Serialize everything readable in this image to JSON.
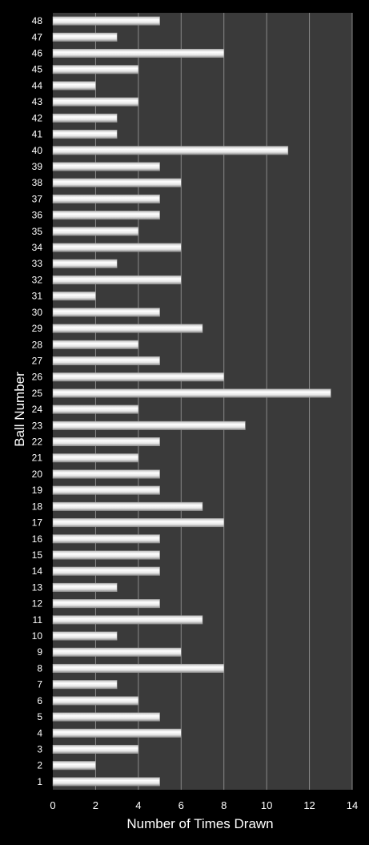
{
  "colors": {
    "background": "#000000",
    "plot_area": "#3a3a3a",
    "gridline": "#8a8a8a",
    "bar_fill": "#f2f2f2",
    "text": "#ffffff"
  },
  "chart_data": {
    "type": "bar",
    "orientation": "horizontal",
    "categories": [
      "1",
      "2",
      "3",
      "4",
      "5",
      "6",
      "7",
      "8",
      "9",
      "10",
      "11",
      "12",
      "13",
      "14",
      "15",
      "16",
      "17",
      "18",
      "19",
      "20",
      "21",
      "22",
      "23",
      "24",
      "25",
      "26",
      "27",
      "28",
      "29",
      "30",
      "31",
      "32",
      "33",
      "34",
      "35",
      "36",
      "37",
      "38",
      "39",
      "40",
      "41",
      "42",
      "43",
      "44",
      "45",
      "46",
      "47",
      "48"
    ],
    "values": [
      5,
      2,
      4,
      6,
      5,
      4,
      3,
      8,
      6,
      3,
      7,
      5,
      3,
      5,
      5,
      5,
      8,
      7,
      5,
      5,
      4,
      5,
      9,
      4,
      13,
      8,
      5,
      4,
      7,
      5,
      2,
      6,
      3,
      6,
      4,
      5,
      5,
      6,
      5,
      11,
      3,
      3,
      4,
      2,
      4,
      8,
      3,
      5
    ],
    "xlabel": "Number of Times Drawn",
    "ylabel": "Ball Number",
    "xlim": [
      0,
      14
    ],
    "xticks": [
      0,
      2,
      4,
      6,
      8,
      10,
      12,
      14
    ],
    "grid": true,
    "legend": "none"
  }
}
